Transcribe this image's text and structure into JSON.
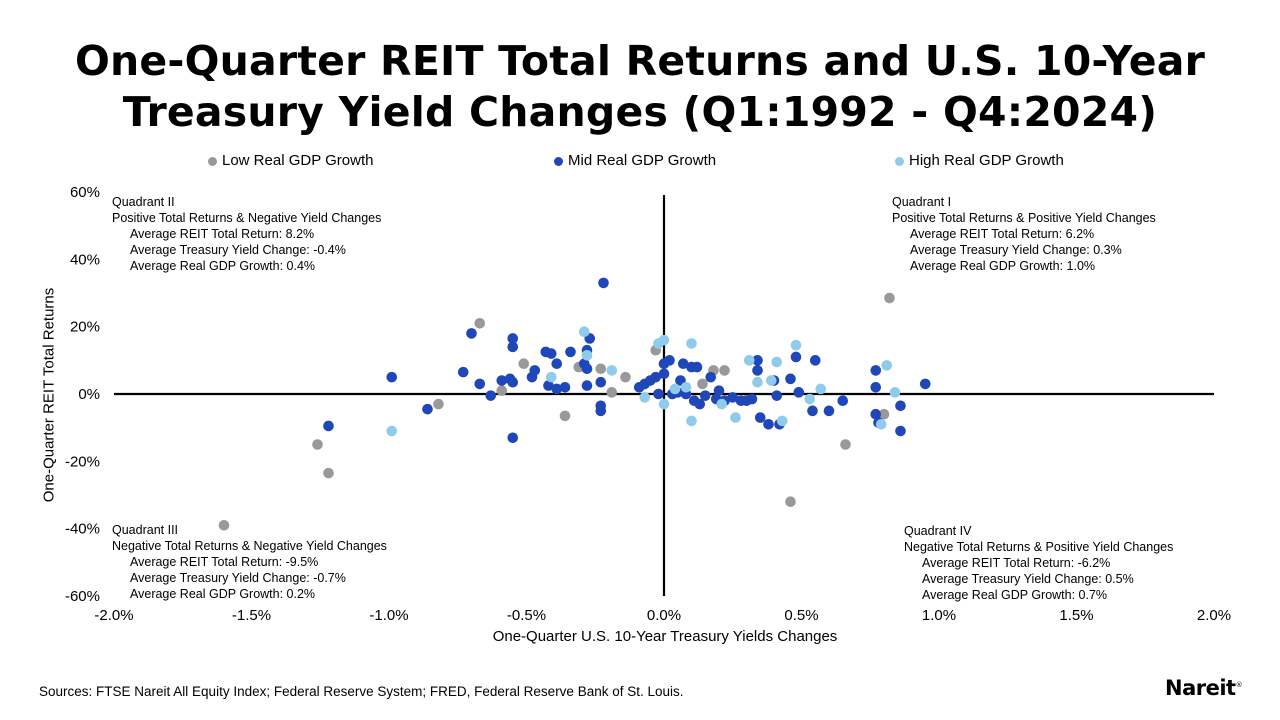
{
  "title": {
    "line1": "One-Quarter REIT Total Returns and U.S. 10-Year",
    "line2": "Treasury Yield Changes (Q1:1992 - Q4:2024)"
  },
  "legend": [
    {
      "label": "Low Real GDP Growth",
      "color": "#999999"
    },
    {
      "label": "Mid Real GDP Growth",
      "color": "#1f47b8"
    },
    {
      "label": "High Real GDP Growth",
      "color": "#8fcbea"
    }
  ],
  "quadrants": {
    "q2": {
      "name": "Quadrant II",
      "desc": "Positive Total Returns & Negative Yield Changes",
      "reit": "Average REIT Total Return: 8.2%",
      "yield": "Average Treasury Yield Change: -0.4%",
      "gdp": "Average Real GDP Growth: 0.4%"
    },
    "q1": {
      "name": "Quadrant I",
      "desc": "Positive Total Returns & Positive Yield Changes",
      "reit": "Average REIT Total Return: 6.2%",
      "yield": "Average Treasury Yield Change: 0.3%",
      "gdp": "Average Real GDP Growth: 1.0%"
    },
    "q3": {
      "name": "Quadrant III",
      "desc": "Negative Total Returns & Negative Yield Changes",
      "reit": "Average REIT Total Return: -9.5%",
      "yield": "Average Treasury Yield Change: -0.7%",
      "gdp": "Average Real GDP Growth: 0.2%"
    },
    "q4": {
      "name": "Quadrant IV",
      "desc": "Negative Total Returns & Positive Yield Changes",
      "reit": "Average REIT Total Return: -6.2%",
      "yield": "Average Treasury Yield Change: 0.5%",
      "gdp": "Average Real GDP Growth: 0.7%"
    }
  },
  "source": "Sources: FTSE Nareit All Equity Index; Federal Reserve System; FRED, Federal Reserve Bank of St. Louis.",
  "logo": {
    "text": "Nareit",
    "mark": "®"
  },
  "chart_data": {
    "type": "scatter",
    "title": "One-Quarter REIT Total Returns and U.S. 10-Year Treasury Yield Changes (Q1:1992 - Q4:2024)",
    "xlabel": "One-Quarter U.S. 10-Year Treasury Yields Changes",
    "ylabel": "One-Quarter REIT Total Returns",
    "xlim": [
      -2.0,
      2.0
    ],
    "ylim": [
      -60,
      60
    ],
    "x_ticks": [
      -2.0,
      -1.5,
      -1.0,
      -0.5,
      0.0,
      0.5,
      1.0,
      1.5,
      2.0
    ],
    "x_tick_labels": [
      "-2.0%",
      "-1.5%",
      "-1.0%",
      "-0.5%",
      "0.0%",
      "0.5%",
      "1.0%",
      "1.5%",
      "2.0%"
    ],
    "y_ticks": [
      60,
      40,
      20,
      0,
      -20,
      -40,
      -60
    ],
    "y_tick_labels": [
      "60%",
      "40%",
      "20%",
      "0%",
      "-20%",
      "-40%",
      "-60%"
    ],
    "legend_position": "top",
    "series": [
      {
        "name": "Low Real GDP Growth",
        "color": "#999999",
        "points": [
          [
            -1.6,
            -39
          ],
          [
            -1.26,
            -15
          ],
          [
            -1.22,
            -23.5
          ],
          [
            -0.82,
            -3
          ],
          [
            -0.67,
            21
          ],
          [
            -0.59,
            1
          ],
          [
            -0.51,
            9
          ],
          [
            -0.36,
            -6.5
          ],
          [
            -0.31,
            8
          ],
          [
            -0.23,
            7.5
          ],
          [
            -0.19,
            0.5
          ],
          [
            -0.14,
            5
          ],
          [
            -0.03,
            13
          ],
          [
            0.14,
            3
          ],
          [
            0.18,
            7
          ],
          [
            0.22,
            7
          ],
          [
            0.46,
            -32
          ],
          [
            0.66,
            -15
          ],
          [
            0.8,
            -6
          ],
          [
            0.82,
            28.5
          ]
        ]
      },
      {
        "name": "Mid Real GDP Growth",
        "color": "#1f47b8",
        "points": [
          [
            -1.22,
            -9.5
          ],
          [
            -0.99,
            5
          ],
          [
            -0.86,
            -4.5
          ],
          [
            -0.73,
            6.5
          ],
          [
            -0.7,
            18
          ],
          [
            -0.67,
            3
          ],
          [
            -0.63,
            -0.5
          ],
          [
            -0.59,
            4
          ],
          [
            -0.56,
            4.5
          ],
          [
            -0.55,
            14
          ],
          [
            -0.55,
            16.5
          ],
          [
            -0.55,
            3.5
          ],
          [
            -0.55,
            -13
          ],
          [
            -0.48,
            5
          ],
          [
            -0.47,
            7
          ],
          [
            -0.43,
            12.5
          ],
          [
            -0.42,
            2.5
          ],
          [
            -0.41,
            12
          ],
          [
            -0.39,
            9
          ],
          [
            -0.39,
            1.5
          ],
          [
            -0.36,
            2
          ],
          [
            -0.34,
            12.5
          ],
          [
            -0.29,
            9
          ],
          [
            -0.28,
            13
          ],
          [
            -0.28,
            7.5
          ],
          [
            -0.28,
            2.5
          ],
          [
            -0.27,
            16.5
          ],
          [
            -0.22,
            33
          ],
          [
            -0.23,
            3.5
          ],
          [
            -0.23,
            -3.5
          ],
          [
            -0.23,
            -5
          ],
          [
            -0.09,
            2
          ],
          [
            -0.07,
            3
          ],
          [
            -0.05,
            4
          ],
          [
            -0.03,
            5
          ],
          [
            -0.02,
            0
          ],
          [
            0.0,
            6
          ],
          [
            0.0,
            9
          ],
          [
            0.02,
            10
          ],
          [
            0.03,
            0
          ],
          [
            0.05,
            0.5
          ],
          [
            0.06,
            4
          ],
          [
            0.07,
            9
          ],
          [
            0.08,
            0
          ],
          [
            0.1,
            8
          ],
          [
            0.11,
            -2
          ],
          [
            0.12,
            8
          ],
          [
            0.13,
            -3
          ],
          [
            0.15,
            -0.5
          ],
          [
            0.17,
            5
          ],
          [
            0.19,
            -1.5
          ],
          [
            0.2,
            1
          ],
          [
            0.22,
            -2
          ],
          [
            0.25,
            -1
          ],
          [
            0.28,
            -2
          ],
          [
            0.3,
            -2
          ],
          [
            0.32,
            -1.5
          ],
          [
            0.34,
            10
          ],
          [
            0.34,
            7
          ],
          [
            0.35,
            -7
          ],
          [
            0.38,
            -9
          ],
          [
            0.4,
            4
          ],
          [
            0.41,
            -0.5
          ],
          [
            0.42,
            -9
          ],
          [
            0.46,
            4.5
          ],
          [
            0.48,
            11
          ],
          [
            0.49,
            0.5
          ],
          [
            0.54,
            -5
          ],
          [
            0.55,
            10
          ],
          [
            0.6,
            -5
          ],
          [
            0.65,
            -2
          ],
          [
            0.77,
            7
          ],
          [
            0.77,
            2
          ],
          [
            0.78,
            -8.5
          ],
          [
            0.77,
            -6
          ],
          [
            0.86,
            -3.5
          ],
          [
            0.86,
            -11
          ],
          [
            0.95,
            3
          ]
        ]
      },
      {
        "name": "High Real GDP Growth",
        "color": "#8fcbea",
        "points": [
          [
            -0.99,
            -11
          ],
          [
            -0.41,
            5
          ],
          [
            -0.29,
            18.5
          ],
          [
            -0.28,
            11.5
          ],
          [
            -0.19,
            7
          ],
          [
            -0.07,
            -1
          ],
          [
            -0.02,
            15
          ],
          [
            0.0,
            16
          ],
          [
            0.0,
            -3
          ],
          [
            0.04,
            1.5
          ],
          [
            0.08,
            2
          ],
          [
            0.1,
            -8
          ],
          [
            0.1,
            15
          ],
          [
            0.21,
            -3
          ],
          [
            0.26,
            -7
          ],
          [
            0.31,
            10
          ],
          [
            0.34,
            3.5
          ],
          [
            0.39,
            4
          ],
          [
            0.41,
            9.5
          ],
          [
            0.43,
            -8
          ],
          [
            0.48,
            14.5
          ],
          [
            0.53,
            -1.5
          ],
          [
            0.57,
            1.5
          ],
          [
            0.79,
            -9
          ],
          [
            0.81,
            8.5
          ],
          [
            0.84,
            0.5
          ]
        ]
      }
    ]
  }
}
